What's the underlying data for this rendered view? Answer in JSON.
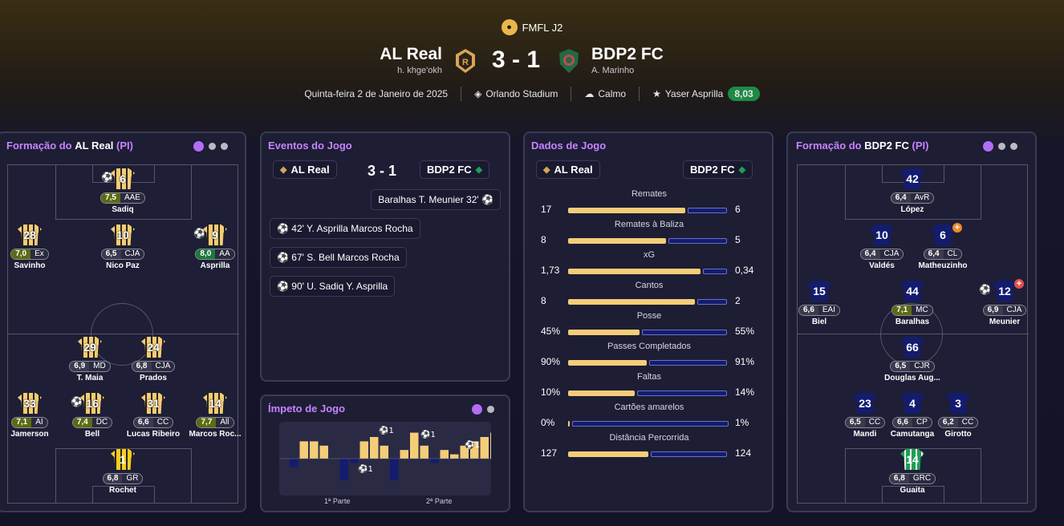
{
  "competition": {
    "name": "FMFL J2"
  },
  "match": {
    "home": "AL Real",
    "home_sub": "h. khge'okh",
    "away": "BDP2 FC",
    "away_sub": "A. Marinho",
    "score": "3 - 1"
  },
  "info": {
    "date": "Quinta-feira 2 de Janeiro de 2025",
    "stadium": "Orlando Stadium",
    "weather": "Calmo",
    "potm": "Yaser Asprilla",
    "potm_rating": "8,03"
  },
  "home_formation": {
    "title_prefix": "Formação do ",
    "team": "AL Real",
    "suffix": " (PI)",
    "players": [
      {
        "n": "6",
        "r": "7,5",
        "pos": "AAE",
        "name": "Sadiq",
        "rc": "y"
      },
      {
        "n": "28",
        "r": "7,0",
        "pos": "Ex",
        "name": "Savinho",
        "rc": "y"
      },
      {
        "n": "10",
        "r": "6,5",
        "pos": "CJA",
        "name": "Nico Paz",
        "rc": ""
      },
      {
        "n": "9",
        "r": "8,0",
        "pos": "AA",
        "name": "Asprilla",
        "rc": "g"
      },
      {
        "n": "29",
        "r": "6,9",
        "pos": "MD",
        "name": "T. Maia",
        "rc": ""
      },
      {
        "n": "24",
        "r": "6,8",
        "pos": "CJA",
        "name": "Prados",
        "rc": ""
      },
      {
        "n": "33",
        "r": "7,1",
        "pos": "AI",
        "name": "Jamerson",
        "rc": "y"
      },
      {
        "n": "16",
        "r": "7,4",
        "pos": "DC",
        "name": "Bell",
        "rc": "y"
      },
      {
        "n": "31",
        "r": "6,6",
        "pos": "CC",
        "name": "Lucas Ribeiro",
        "rc": ""
      },
      {
        "n": "14",
        "r": "7,7",
        "pos": "All",
        "name": "Marcos Roc...",
        "rc": "y"
      },
      {
        "n": "1",
        "r": "6,8",
        "pos": "GR",
        "name": "Rochet",
        "rc": ""
      }
    ]
  },
  "away_formation": {
    "title_prefix": "Formação do ",
    "team": "BDP2 FC",
    "suffix": " (PI)",
    "players": [
      {
        "n": "42",
        "r": "6,4",
        "pos": "AvR",
        "name": "López",
        "rc": ""
      },
      {
        "n": "10",
        "r": "6,4",
        "pos": "CJA",
        "name": "Valdés",
        "rc": ""
      },
      {
        "n": "6",
        "r": "6,4",
        "pos": "CL",
        "name": "Matheuzinho",
        "rc": ""
      },
      {
        "n": "15",
        "r": "6,6",
        "pos": "EAI",
        "name": "Biel",
        "rc": ""
      },
      {
        "n": "44",
        "r": "7,1",
        "pos": "MC",
        "name": "Baralhas",
        "rc": "y"
      },
      {
        "n": "12",
        "r": "6,9",
        "pos": "CJA",
        "name": "Meunier",
        "rc": ""
      },
      {
        "n": "66",
        "r": "6,5",
        "pos": "CJR",
        "name": "Douglas Aug...",
        "rc": ""
      },
      {
        "n": "23",
        "r": "6,5",
        "pos": "CC",
        "name": "Mandi",
        "rc": ""
      },
      {
        "n": "4",
        "r": "6,6",
        "pos": "CP",
        "name": "Camutanga",
        "rc": ""
      },
      {
        "n": "3",
        "r": "6,2",
        "pos": "CC",
        "name": "Girotto",
        "rc": ""
      },
      {
        "n": "14",
        "r": "6,8",
        "pos": "GRC",
        "name": "Guaita",
        "rc": ""
      }
    ]
  },
  "events": {
    "title": "Eventos do Jogo",
    "home": "AL Real",
    "away": "BDP2 FC",
    "score": "3 - 1",
    "away_events": [
      {
        "text": "Baralhas  T. Meunier  32'"
      }
    ],
    "home_events": [
      {
        "text": "42'  Y. Asprilla  Marcos Rocha"
      },
      {
        "text": "67'  S. Bell  Marcos Rocha"
      },
      {
        "text": "90'  U. Sadiq  Y. Asprilla"
      }
    ]
  },
  "momentum": {
    "title": "Ímpeto de Jogo",
    "half1": "1ª Parte",
    "half2": "2ª Parte",
    "values": [
      -2,
      4,
      4,
      3,
      0,
      -5,
      -1,
      4,
      5,
      3,
      -5,
      2,
      6,
      3,
      -1,
      2,
      1,
      3,
      4,
      5,
      6
    ],
    "goals": [
      "1",
      "1",
      "1",
      "1"
    ]
  },
  "stats": {
    "title": "Dados de Jogo",
    "home": "AL Real",
    "away": "BDP2 FC",
    "rows": [
      {
        "label": "Remates",
        "h": "17",
        "a": "6",
        "hv": 17,
        "av": 6
      },
      {
        "label": "Remates à Baliza",
        "h": "8",
        "a": "5",
        "hv": 8,
        "av": 5
      },
      {
        "label": "xG",
        "h": "1,73",
        "a": "0,34",
        "hv": 1.73,
        "av": 0.34
      },
      {
        "label": "Cantos",
        "h": "8",
        "a": "2",
        "hv": 8,
        "av": 2
      },
      {
        "label": "Posse",
        "h": "45%",
        "a": "55%",
        "hv": 45,
        "av": 55
      },
      {
        "label": "Passes Completados",
        "h": "90%",
        "a": "91%",
        "hv": 90,
        "av": 91
      },
      {
        "label": "Faltas",
        "h": "10%",
        "a": "14%",
        "hv": 10,
        "av": 14
      },
      {
        "label": "Cartões amarelos",
        "h": "0%",
        "a": "1%",
        "hv": 0,
        "av": 1
      },
      {
        "label": "Distância Percorrida",
        "h": "127",
        "a": "124",
        "hv": 127,
        "av": 124
      }
    ]
  }
}
